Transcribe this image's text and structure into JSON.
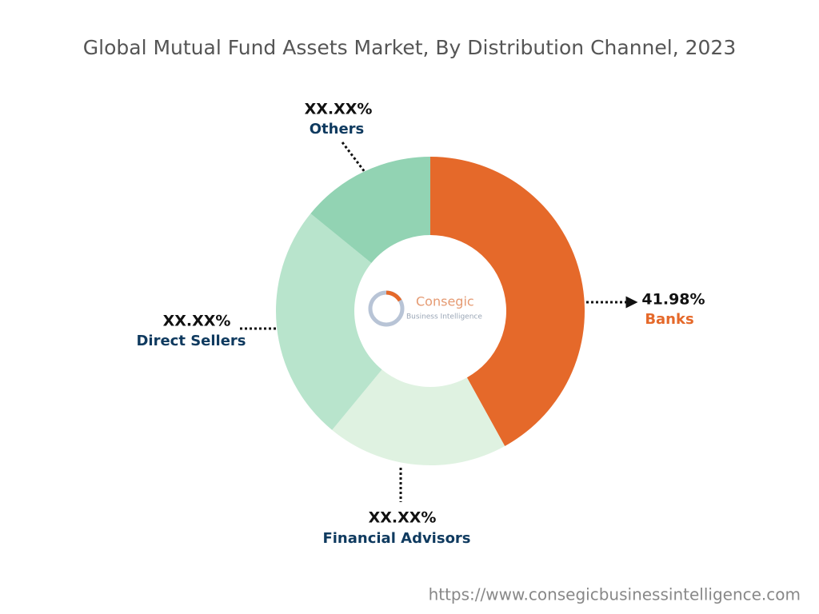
{
  "chart_data": {
    "type": "pie",
    "title": "Global Mutual Fund Assets Market, By Distribution Channel, 2023",
    "categories": [
      "Banks",
      "Financial Advisors",
      "Direct Sellers",
      "Others"
    ],
    "values": [
      41.98,
      19.0,
      24.9,
      14.12
    ],
    "value_labels": [
      "41.98%",
      "XX.XX%",
      "XX.XX%",
      "XX.XX%"
    ],
    "colors": [
      "#e5692a",
      "#dff2e1",
      "#b8e4cc",
      "#92d3b3"
    ],
    "label_colors": [
      "#e5692a",
      "#0f3a5f",
      "#0f3a5f",
      "#0f3a5f"
    ]
  },
  "logo": {
    "name": "Consegic",
    "tagline": "Business Intelligence"
  },
  "footer": "https://www.consegicbusinessintelligence.com"
}
